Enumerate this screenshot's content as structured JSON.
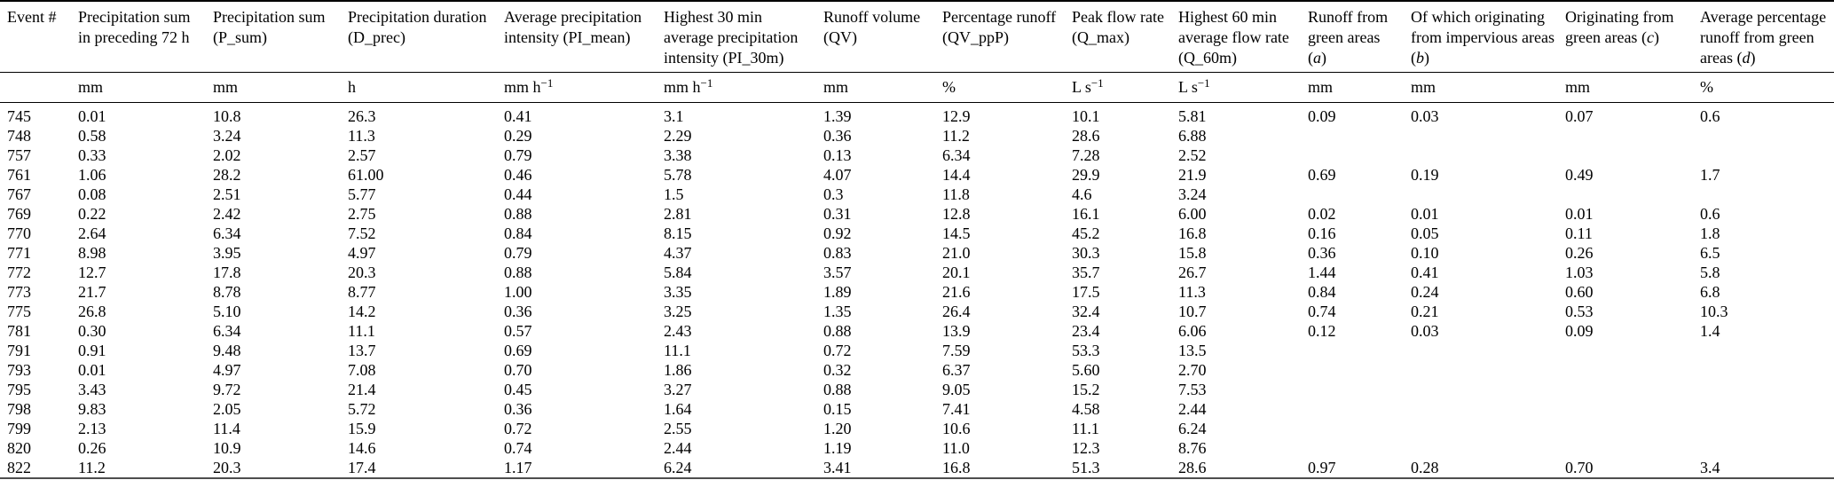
{
  "table": {
    "columns": [
      {
        "label": "Event #",
        "unit": ""
      },
      {
        "label": "Precipitation sum in preceding 72 h",
        "unit": "mm"
      },
      {
        "label": "Precipitation sum (P_sum)",
        "unit": "mm"
      },
      {
        "label": "Precipitation duration (D_prec)",
        "unit": "h"
      },
      {
        "label": "Average precipitation intensity (PI_mean)",
        "unit": "mm h",
        "unit_sup": "−1"
      },
      {
        "label": "Highest 30 min average precipitation intensity (PI_30m)",
        "unit": "mm h",
        "unit_sup": "−1"
      },
      {
        "label": "Runoff volume (QV)",
        "unit": "mm"
      },
      {
        "label": "Percentage runoff (QV_ppP)",
        "unit": "%"
      },
      {
        "label": "Peak flow rate (Q_max)",
        "unit": "L s",
        "unit_sup": "−1"
      },
      {
        "label": "Highest 60 min average flow rate (Q_60m)",
        "unit": "L s",
        "unit_sup": "−1"
      },
      {
        "label": "Runoff from green areas",
        "italic_var": "a",
        "unit": "mm"
      },
      {
        "label": "Of which originating from impervious areas",
        "italic_var": "b",
        "unit": "mm"
      },
      {
        "label": "Originating from green areas",
        "italic_var": "c",
        "unit": "mm"
      },
      {
        "label": "Average percentage runoff from green areas",
        "italic_var": "d",
        "unit": "%"
      }
    ],
    "rows": [
      [
        "745",
        "0.01",
        "10.8",
        "26.3",
        "0.41",
        "3.1",
        "1.39",
        "12.9",
        "10.1",
        "5.81",
        "0.09",
        "0.03",
        "0.07",
        "0.6"
      ],
      [
        "748",
        "0.58",
        "3.24",
        "11.3",
        "0.29",
        "2.29",
        "0.36",
        "11.2",
        "28.6",
        "6.88",
        "",
        "",
        "",
        ""
      ],
      [
        "757",
        "0.33",
        "2.02",
        "2.57",
        "0.79",
        "3.38",
        "0.13",
        "6.34",
        "7.28",
        "2.52",
        "",
        "",
        "",
        ""
      ],
      [
        "761",
        "1.06",
        "28.2",
        "61.00",
        "0.46",
        "5.78",
        "4.07",
        "14.4",
        "29.9",
        "21.9",
        "0.69",
        "0.19",
        "0.49",
        "1.7"
      ],
      [
        "767",
        "0.08",
        "2.51",
        "5.77",
        "0.44",
        "1.5",
        "0.3",
        "11.8",
        "4.6",
        "3.24",
        "",
        "",
        "",
        ""
      ],
      [
        "769",
        "0.22",
        "2.42",
        "2.75",
        "0.88",
        "2.81",
        "0.31",
        "12.8",
        "16.1",
        "6.00",
        "0.02",
        "0.01",
        "0.01",
        "0.6"
      ],
      [
        "770",
        "2.64",
        "6.34",
        "7.52",
        "0.84",
        "8.15",
        "0.92",
        "14.5",
        "45.2",
        "16.8",
        "0.16",
        "0.05",
        "0.11",
        "1.8"
      ],
      [
        "771",
        "8.98",
        "3.95",
        "4.97",
        "0.79",
        "4.37",
        "0.83",
        "21.0",
        "30.3",
        "15.8",
        "0.36",
        "0.10",
        "0.26",
        "6.5"
      ],
      [
        "772",
        "12.7",
        "17.8",
        "20.3",
        "0.88",
        "5.84",
        "3.57",
        "20.1",
        "35.7",
        "26.7",
        "1.44",
        "0.41",
        "1.03",
        "5.8"
      ],
      [
        "773",
        "21.7",
        "8.78",
        "8.77",
        "1.00",
        "3.35",
        "1.89",
        "21.6",
        "17.5",
        "11.3",
        "0.84",
        "0.24",
        "0.60",
        "6.8"
      ],
      [
        "775",
        "26.8",
        "5.10",
        "14.2",
        "0.36",
        "3.25",
        "1.35",
        "26.4",
        "32.4",
        "10.7",
        "0.74",
        "0.21",
        "0.53",
        "10.3"
      ],
      [
        "781",
        "0.30",
        "6.34",
        "11.1",
        "0.57",
        "2.43",
        "0.88",
        "13.9",
        "23.4",
        "6.06",
        "0.12",
        "0.03",
        "0.09",
        "1.4"
      ],
      [
        "791",
        "0.91",
        "9.48",
        "13.7",
        "0.69",
        "11.1",
        "0.72",
        "7.59",
        "53.3",
        "13.5",
        "",
        "",
        "",
        ""
      ],
      [
        "793",
        "0.01",
        "4.97",
        "7.08",
        "0.70",
        "1.86",
        "0.32",
        "6.37",
        "5.60",
        "2.70",
        "",
        "",
        "",
        ""
      ],
      [
        "795",
        "3.43",
        "9.72",
        "21.4",
        "0.45",
        "3.27",
        "0.88",
        "9.05",
        "15.2",
        "7.53",
        "",
        "",
        "",
        ""
      ],
      [
        "798",
        "9.83",
        "2.05",
        "5.72",
        "0.36",
        "1.64",
        "0.15",
        "7.41",
        "4.58",
        "2.44",
        "",
        "",
        "",
        ""
      ],
      [
        "799",
        "2.13",
        "11.4",
        "15.9",
        "0.72",
        "2.55",
        "1.20",
        "10.6",
        "11.1",
        "6.24",
        "",
        "",
        "",
        ""
      ],
      [
        "820",
        "0.26",
        "10.9",
        "14.6",
        "0.74",
        "2.44",
        "1.19",
        "11.0",
        "12.3",
        "8.76",
        "",
        "",
        "",
        ""
      ],
      [
        "822",
        "11.2",
        "20.3",
        "17.4",
        "1.17",
        "6.24",
        "3.41",
        "16.8",
        "51.3",
        "28.6",
        "0.97",
        "0.28",
        "0.70",
        "3.4"
      ]
    ]
  }
}
